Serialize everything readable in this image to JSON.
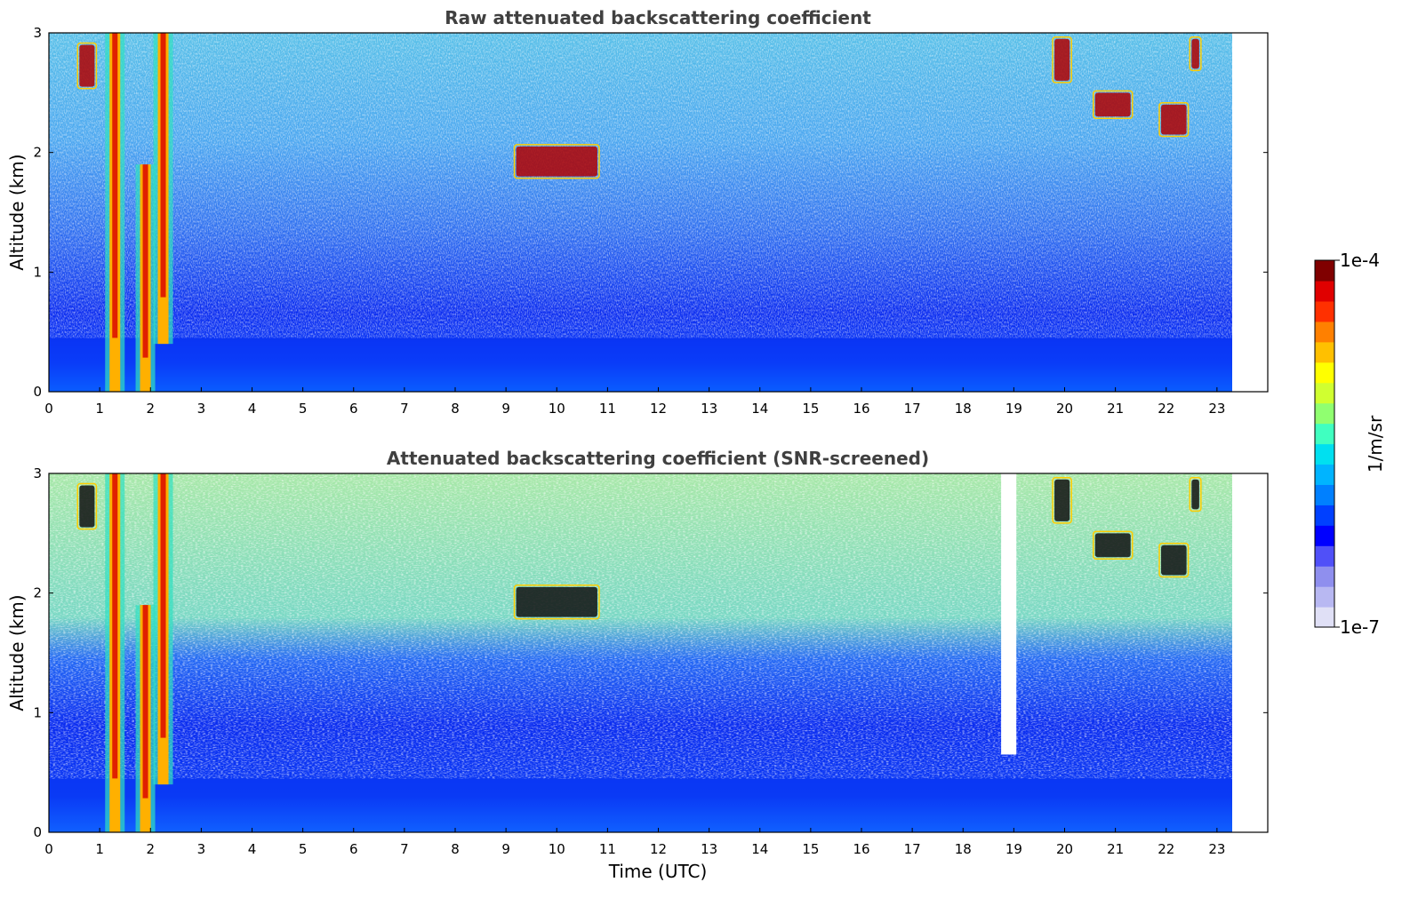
{
  "chart_data": [
    {
      "type": "heatmap",
      "title": "Raw attenuated backscattering coefficient",
      "xlabel": "",
      "ylabel": "Altitude (km)",
      "xlim": [
        0,
        24
      ],
      "ylim": [
        0,
        3
      ],
      "x_ticks": [
        "0",
        "1",
        "2",
        "3",
        "4",
        "5",
        "6",
        "7",
        "8",
        "9",
        "10",
        "11",
        "12",
        "13",
        "14",
        "15",
        "16",
        "17",
        "18",
        "19",
        "20",
        "21",
        "22",
        "23"
      ],
      "y_ticks": [
        "0",
        "1",
        "2",
        "3"
      ],
      "data_end_hour": 23.3,
      "features": [
        {
          "kind": "rain_column",
          "x_center": 1.3,
          "y_bottom": 0.0,
          "y_top": 3.0
        },
        {
          "kind": "rain_column",
          "x_center": 1.9,
          "y_bottom": 0.0,
          "y_top": 1.9
        },
        {
          "kind": "rain_column",
          "x_center": 2.25,
          "y_bottom": 0.4,
          "y_top": 3.0
        },
        {
          "kind": "cloud",
          "x_start": 0.6,
          "x_end": 0.9,
          "y_bottom": 2.55,
          "y_top": 2.9
        },
        {
          "kind": "cloud",
          "x_start": 9.2,
          "x_end": 10.8,
          "y_bottom": 1.8,
          "y_top": 2.05
        },
        {
          "kind": "cloud",
          "x_start": 19.8,
          "x_end": 20.1,
          "y_bottom": 2.6,
          "y_top": 2.95
        },
        {
          "kind": "cloud",
          "x_start": 20.6,
          "x_end": 21.3,
          "y_bottom": 2.3,
          "y_top": 2.5
        },
        {
          "kind": "cloud",
          "x_start": 21.9,
          "x_end": 22.4,
          "y_bottom": 2.15,
          "y_top": 2.4
        },
        {
          "kind": "cloud",
          "x_start": 22.5,
          "x_end": 22.65,
          "y_bottom": 2.7,
          "y_top": 2.95
        }
      ]
    },
    {
      "type": "heatmap",
      "title": "Attenuated backscattering coefficient (SNR-screened)",
      "xlabel": "Time (UTC)",
      "ylabel": "Altitude (km)",
      "xlim": [
        0,
        24
      ],
      "ylim": [
        0,
        3
      ],
      "x_ticks": [
        "0",
        "1",
        "2",
        "3",
        "4",
        "5",
        "6",
        "7",
        "8",
        "9",
        "10",
        "11",
        "12",
        "13",
        "14",
        "15",
        "16",
        "17",
        "18",
        "19",
        "20",
        "21",
        "22",
        "23"
      ],
      "y_ticks": [
        "0",
        "1",
        "2",
        "3"
      ],
      "data_end_hour": 23.3,
      "screened_gaps": [
        {
          "x_start": 18.75,
          "x_end": 19.05,
          "y_bottom": 0.65,
          "y_top": 3.0
        }
      ],
      "features": [
        {
          "kind": "rain_column",
          "x_center": 1.3,
          "y_bottom": 0.0,
          "y_top": 3.0
        },
        {
          "kind": "rain_column",
          "x_center": 1.9,
          "y_bottom": 0.0,
          "y_top": 1.9
        },
        {
          "kind": "rain_column",
          "x_center": 2.25,
          "y_bottom": 0.4,
          "y_top": 3.0
        },
        {
          "kind": "cloud",
          "x_start": 0.6,
          "x_end": 0.9,
          "y_bottom": 2.55,
          "y_top": 2.9
        },
        {
          "kind": "cloud",
          "x_start": 9.2,
          "x_end": 10.8,
          "y_bottom": 1.8,
          "y_top": 2.05
        },
        {
          "kind": "cloud",
          "x_start": 19.8,
          "x_end": 20.1,
          "y_bottom": 2.6,
          "y_top": 2.95
        },
        {
          "kind": "cloud",
          "x_start": 20.6,
          "x_end": 21.3,
          "y_bottom": 2.3,
          "y_top": 2.5
        },
        {
          "kind": "cloud",
          "x_start": 21.9,
          "x_end": 22.4,
          "y_bottom": 2.15,
          "y_top": 2.4
        },
        {
          "kind": "cloud",
          "x_start": 22.5,
          "x_end": 22.65,
          "y_bottom": 2.7,
          "y_top": 2.95
        }
      ]
    }
  ],
  "colorbar": {
    "label": "1/m/sr",
    "max_label": "1e-4",
    "min_label": "1e-7",
    "colors": [
      "#e0e0f6",
      "#b8b8f2",
      "#8f8fee",
      "#5050f8",
      "#0000ff",
      "#0040ff",
      "#0080ff",
      "#00b4ff",
      "#00e0f0",
      "#40ffc0",
      "#90ff70",
      "#d0ff30",
      "#ffff00",
      "#ffc000",
      "#ff8000",
      "#ff3000",
      "#e00000",
      "#800000"
    ]
  }
}
